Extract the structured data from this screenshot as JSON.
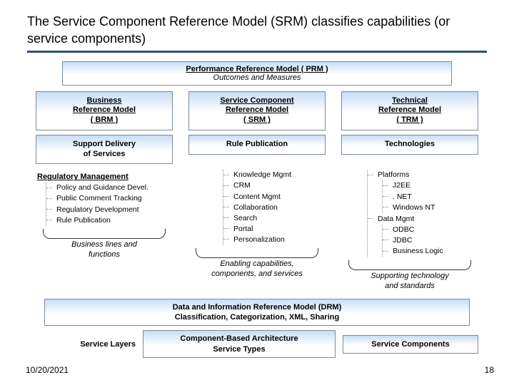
{
  "colors": {
    "title_underline": "#324c7a",
    "box_border": "#7a8aa0",
    "box_gradient_top": "#c7ddf5",
    "box_gradient_bottom": "#ffffff",
    "dotted_connector": "#8090a0",
    "text": "#000000",
    "background": "#ffffff"
  },
  "typography": {
    "title_fontsize": 18,
    "body_fontsize": 11,
    "list_fontsize": 10.5,
    "font_family": "Verdana, Tahoma, sans-serif"
  },
  "title": "The Service Component Reference Model (SRM) classifies capabilities (or service components)",
  "prm": {
    "title": "Performance Reference Model ( PRM )",
    "subtitle": "Outcomes and Measures"
  },
  "columns": {
    "brm": {
      "title_l1": "Business",
      "title_l2": "Reference Model",
      "title_l3": "( BRM )",
      "sub_l1": "Support Delivery",
      "sub_l2": "of Services",
      "group": "Regulatory Management",
      "items": [
        "Policy and Guidance Devel.",
        "Public Comment Tracking",
        "Regulatory Development",
        "Rule Publication"
      ],
      "caption_l1": "Business lines and",
      "caption_l2": "functions"
    },
    "srm": {
      "title_l1": "Service Component",
      "title_l2": "Reference Model",
      "title_l3": "( SRM )",
      "sub": "Rule Publication",
      "items": [
        "Knowledge Mgmt",
        "CRM",
        "Content Mgmt",
        "Collaboration",
        "Search",
        "Portal",
        "Personalization"
      ],
      "caption_l1": "Enabling capabilities,",
      "caption_l2": "components, and services"
    },
    "trm": {
      "title_l1": "Technical",
      "title_l2": "Reference Model",
      "title_l3": "( TRM )",
      "sub": "Technologies",
      "groups": [
        {
          "label": "Platforms",
          "items": [
            "J2EE",
            ". NET",
            "Windows NT"
          ]
        },
        {
          "label": "Data Mgmt",
          "items": [
            "ODBC",
            "JDBC",
            "Business Logic"
          ]
        }
      ],
      "caption_l1": "Supporting technology",
      "caption_l2": "and standards"
    }
  },
  "drm": {
    "l1": "Data and Information Reference Model (DRM)",
    "l2": "Classification, Categorization, XML, Sharing"
  },
  "bottom": {
    "service_layers": "Service Layers",
    "arch_l1": "Component-Based Architecture",
    "arch_l2": "Service Types",
    "service_components": "Service Components"
  },
  "footer": {
    "date": "10/20/2021",
    "page": "18"
  }
}
